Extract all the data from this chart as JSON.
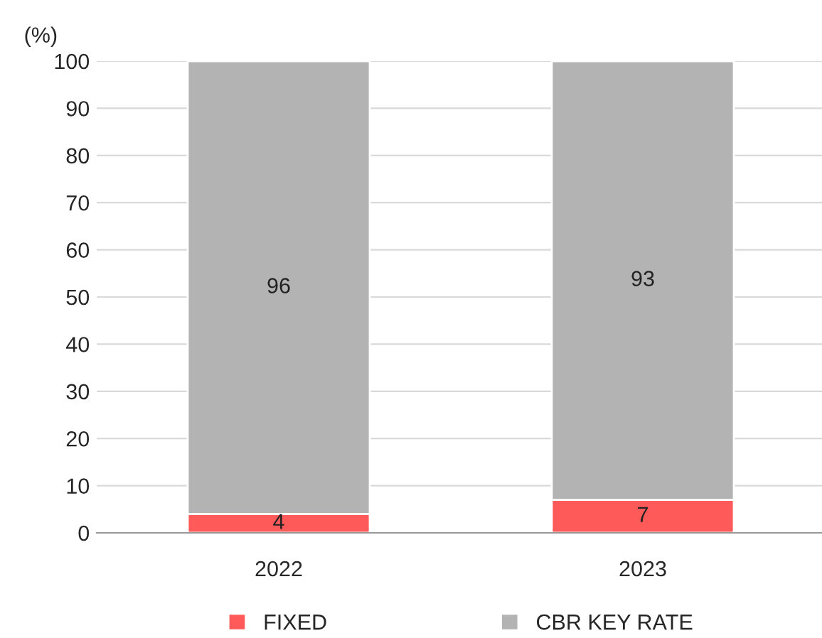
{
  "chart_data": {
    "type": "bar",
    "stacked": true,
    "ylabel": "(%)",
    "categories": [
      "2022",
      "2023"
    ],
    "series": [
      {
        "name": "FIXED",
        "color": "#ff5a5a",
        "values": [
          4,
          7
        ]
      },
      {
        "name": "CBR KEY RATE",
        "color": "#b3b3b3",
        "values": [
          96,
          93
        ]
      }
    ],
    "ylim": [
      0,
      100
    ],
    "yticks": [
      0,
      10,
      20,
      30,
      40,
      50,
      60,
      70,
      80,
      90,
      100
    ],
    "grid": "y",
    "legend": "bottom",
    "data_labels": true
  }
}
